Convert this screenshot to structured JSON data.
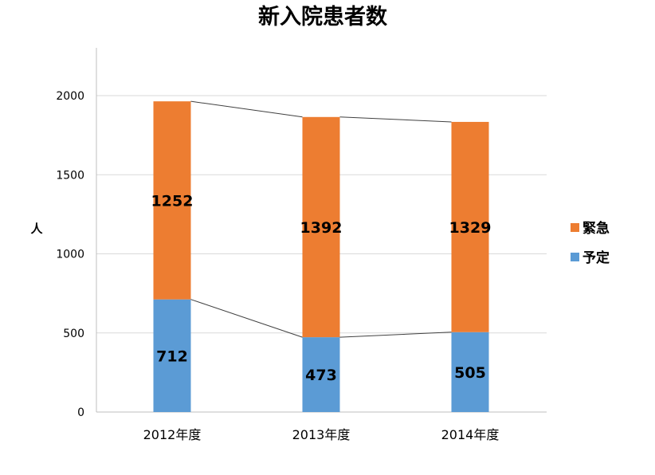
{
  "chart_data": {
    "type": "bar",
    "stacked": true,
    "title": "新入院患者数",
    "ylabel": "人",
    "xlabel": "",
    "categories": [
      "2012年度",
      "2013年度",
      "2014年度"
    ],
    "series": [
      {
        "name": "予定",
        "values": [
          712,
          473,
          505
        ],
        "color": "#5b9bd5"
      },
      {
        "name": "緊急",
        "values": [
          1252,
          1392,
          1329
        ],
        "color": "#ed7d31"
      }
    ],
    "ylim": [
      0,
      2200
    ],
    "yticks": [
      0,
      500,
      1000,
      1500,
      2000
    ],
    "grid": true,
    "series_lines": true,
    "legend": "right",
    "legend_order": [
      "緊急",
      "予定"
    ]
  }
}
